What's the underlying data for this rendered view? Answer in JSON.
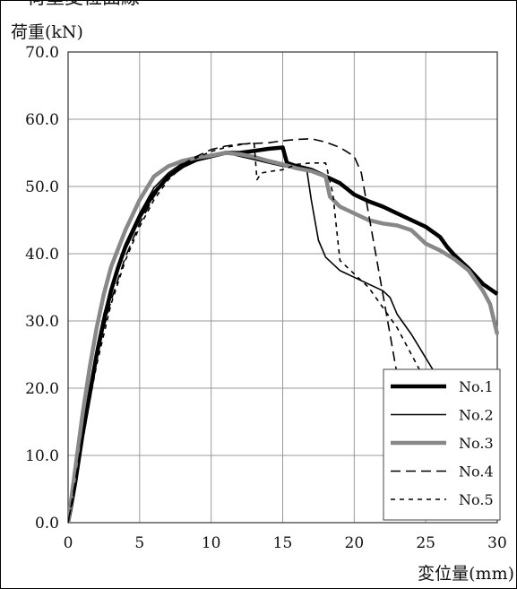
{
  "figure": {
    "top_caption": "荷重変位曲線"
  },
  "chart_data": {
    "type": "line",
    "ylabel": "荷重(kN)",
    "xlabel": "変位量(mm)",
    "xlim": [
      0,
      30
    ],
    "ylim": [
      0,
      70
    ],
    "x_ticks": [
      0,
      5,
      10,
      15,
      20,
      25,
      30
    ],
    "x_tick_labels": [
      "0",
      "5",
      "10",
      "15",
      "20",
      "25",
      "30"
    ],
    "y_ticks": [
      0,
      10,
      20,
      30,
      40,
      50,
      60,
      70
    ],
    "y_tick_labels": [
      "0.0",
      "10.0",
      "20.0",
      "30.0",
      "40.0",
      "50.0",
      "60.0",
      "70.0"
    ],
    "grid": true,
    "legend_position": "bottom-right",
    "series": [
      {
        "name": "No.1",
        "style": {
          "color": "#000000",
          "width": 4.5,
          "dash": ""
        },
        "points": [
          [
            0,
            0
          ],
          [
            0.5,
            6
          ],
          [
            1,
            13
          ],
          [
            1.5,
            19
          ],
          [
            2,
            25
          ],
          [
            2.5,
            30
          ],
          [
            3,
            34.5
          ],
          [
            3.5,
            38
          ],
          [
            4,
            41
          ],
          [
            5,
            45.5
          ],
          [
            6,
            49
          ],
          [
            7,
            51.5
          ],
          [
            8,
            53
          ],
          [
            9,
            54
          ],
          [
            10,
            54.5
          ],
          [
            11,
            55
          ],
          [
            12,
            55
          ],
          [
            13,
            55.3
          ],
          [
            14,
            55.6
          ],
          [
            15,
            55.8
          ],
          [
            15.3,
            53.5
          ],
          [
            16,
            53
          ],
          [
            17,
            52.5
          ],
          [
            18,
            51.5
          ],
          [
            19,
            50.5
          ],
          [
            20,
            48.8
          ],
          [
            21,
            47.8
          ],
          [
            22,
            47
          ],
          [
            23,
            46
          ],
          [
            24,
            45
          ],
          [
            25,
            44
          ],
          [
            26,
            42.5
          ],
          [
            26.5,
            41
          ],
          [
            27,
            39.8
          ],
          [
            28,
            37.8
          ],
          [
            29,
            35.5
          ],
          [
            30,
            34
          ]
        ]
      },
      {
        "name": "No.2",
        "style": {
          "color": "#000000",
          "width": 1.6,
          "dash": ""
        },
        "points": [
          [
            0,
            0
          ],
          [
            0.5,
            7
          ],
          [
            1,
            14
          ],
          [
            1.5,
            20
          ],
          [
            2,
            26
          ],
          [
            2.5,
            31
          ],
          [
            3,
            35
          ],
          [
            4,
            41.5
          ],
          [
            5,
            46
          ],
          [
            6,
            49.8
          ],
          [
            7,
            52
          ],
          [
            8,
            53.5
          ],
          [
            9,
            54.3
          ],
          [
            10,
            54.8
          ],
          [
            11,
            55
          ],
          [
            12,
            54.5
          ],
          [
            13,
            54
          ],
          [
            14,
            53.5
          ],
          [
            15,
            53
          ],
          [
            16,
            52.7
          ],
          [
            16.7,
            52.3
          ],
          [
            17,
            48
          ],
          [
            17.5,
            42
          ],
          [
            18,
            39.5
          ],
          [
            19,
            37.5
          ],
          [
            20,
            36.5
          ],
          [
            21,
            35.5
          ],
          [
            22,
            34.5
          ],
          [
            22.5,
            33.5
          ],
          [
            23,
            31
          ],
          [
            24,
            28
          ],
          [
            25,
            24.5
          ],
          [
            26,
            21
          ],
          [
            27,
            17
          ],
          [
            28,
            13.5
          ]
        ]
      },
      {
        "name": "No.3",
        "style": {
          "color": "#888888",
          "width": 4.5,
          "dash": ""
        },
        "points": [
          [
            0,
            0
          ],
          [
            0.5,
            8
          ],
          [
            1,
            16
          ],
          [
            1.5,
            23
          ],
          [
            2,
            29
          ],
          [
            2.5,
            34
          ],
          [
            3,
            38
          ],
          [
            4,
            43.5
          ],
          [
            5,
            48
          ],
          [
            6,
            51.5
          ],
          [
            7,
            53
          ],
          [
            8,
            53.8
          ],
          [
            9,
            54.3
          ],
          [
            10,
            54.6
          ],
          [
            11,
            55
          ],
          [
            12,
            54.8
          ],
          [
            13,
            54.4
          ],
          [
            14,
            53.8
          ],
          [
            15,
            53.3
          ],
          [
            16,
            52.7
          ],
          [
            17,
            52.3
          ],
          [
            18,
            51.5
          ],
          [
            18.3,
            48.5
          ],
          [
            19,
            47
          ],
          [
            20,
            46
          ],
          [
            21,
            45
          ],
          [
            22,
            44.5
          ],
          [
            23,
            44.2
          ],
          [
            24,
            43.5
          ],
          [
            25,
            41.5
          ],
          [
            26,
            40.5
          ],
          [
            27,
            39.2
          ],
          [
            28,
            37.5
          ],
          [
            29,
            34.5
          ],
          [
            29.5,
            32.5
          ],
          [
            30,
            28
          ]
        ]
      },
      {
        "name": "No.4",
        "style": {
          "color": "#000000",
          "width": 1.6,
          "dash": "11 6"
        },
        "points": [
          [
            0,
            0
          ],
          [
            0.5,
            6
          ],
          [
            1,
            13
          ],
          [
            1.5,
            19
          ],
          [
            2,
            24.5
          ],
          [
            2.5,
            29
          ],
          [
            3,
            33
          ],
          [
            4,
            39.5
          ],
          [
            5,
            44.5
          ],
          [
            6,
            48.5
          ],
          [
            7,
            51.5
          ],
          [
            8,
            53.3
          ],
          [
            9,
            54.5
          ],
          [
            10,
            55.5
          ],
          [
            11,
            56
          ],
          [
            12,
            56.3
          ],
          [
            13,
            56.4
          ],
          [
            14,
            56.5
          ],
          [
            15,
            56.8
          ],
          [
            16,
            57
          ],
          [
            17,
            57.1
          ],
          [
            18,
            56.6
          ],
          [
            19,
            55.8
          ],
          [
            20,
            54.5
          ],
          [
            20.5,
            52
          ],
          [
            21,
            46
          ],
          [
            21.5,
            40
          ],
          [
            22,
            34
          ],
          [
            22.5,
            28
          ],
          [
            23,
            22
          ],
          [
            23.5,
            16
          ]
        ]
      },
      {
        "name": "No.5",
        "style": {
          "color": "#000000",
          "width": 1.6,
          "dash": "5 5"
        },
        "points": [
          [
            0,
            0
          ],
          [
            0.5,
            5.5
          ],
          [
            1,
            12
          ],
          [
            1.5,
            18
          ],
          [
            2,
            23.5
          ],
          [
            2.5,
            28
          ],
          [
            3,
            32.5
          ],
          [
            4,
            39
          ],
          [
            5,
            44
          ],
          [
            6,
            48
          ],
          [
            7,
            51
          ],
          [
            8,
            53
          ],
          [
            9,
            54.3
          ],
          [
            10,
            55.2
          ],
          [
            11,
            55.8
          ],
          [
            12,
            56.2
          ],
          [
            13,
            56.5
          ],
          [
            13.2,
            51
          ],
          [
            13.5,
            52
          ],
          [
            14,
            52.2
          ],
          [
            15,
            52.5
          ],
          [
            16,
            53.3
          ],
          [
            17,
            53.5
          ],
          [
            18,
            53.5
          ],
          [
            18.5,
            49
          ],
          [
            19,
            39
          ],
          [
            20,
            37
          ],
          [
            21,
            35
          ],
          [
            22,
            32
          ],
          [
            23,
            29
          ],
          [
            24,
            25
          ],
          [
            25,
            21
          ]
        ]
      }
    ]
  }
}
